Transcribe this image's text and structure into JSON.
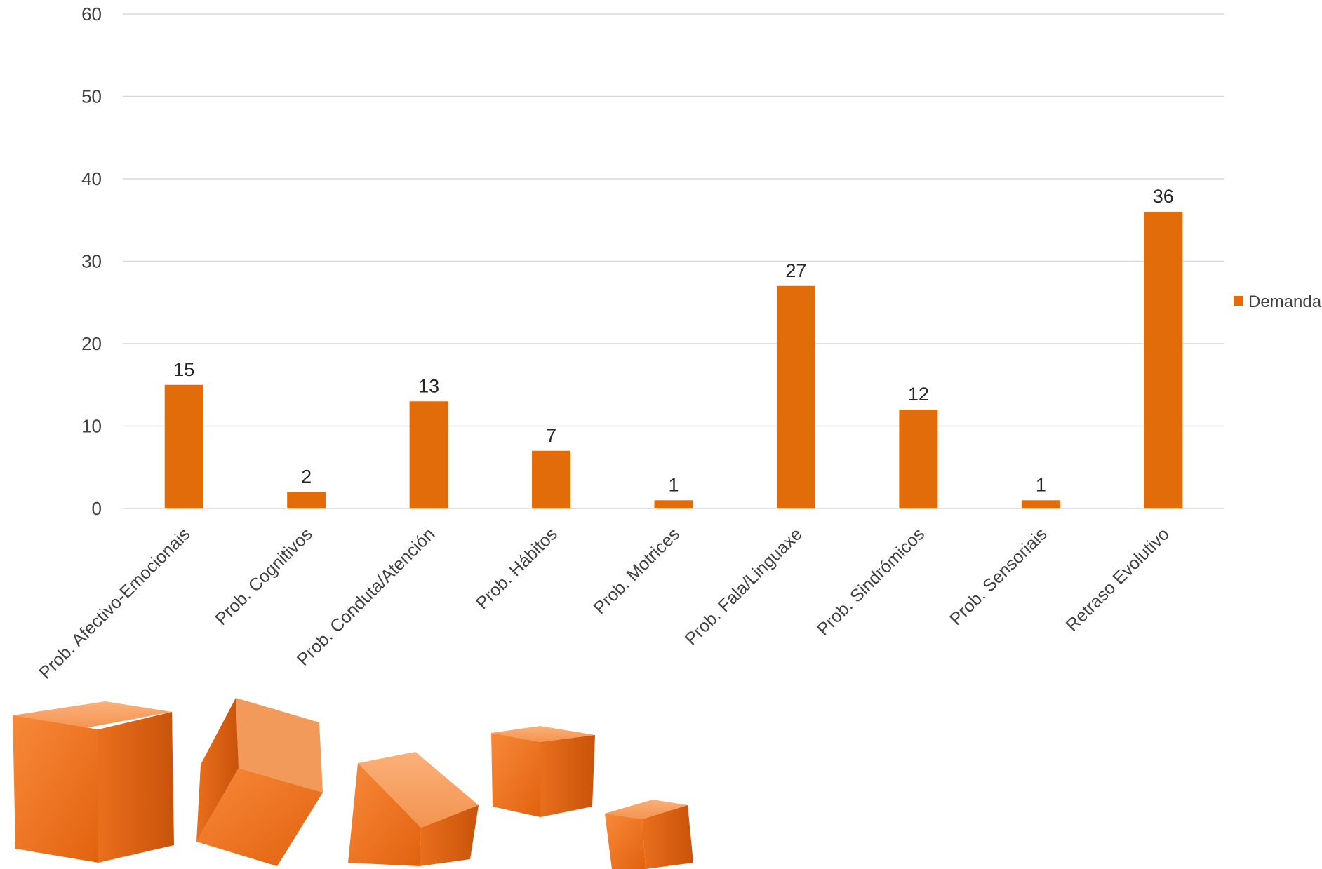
{
  "chart_data": {
    "type": "bar",
    "title": "",
    "xlabel": "",
    "ylabel": "",
    "categories": [
      "Prob. Afectivo-Emocionais",
      "Prob. Cognitivos",
      "Prob. Conduta/Atención",
      "Prob. Hábitos",
      "Prob. Motrices",
      "Prob. Fala/Linguaxe",
      "Prob. Sindrómicos",
      "Prob. Sensoriais",
      "Retraso Evolutivo"
    ],
    "series": [
      {
        "name": "Demanda",
        "values": [
          15,
          2,
          13,
          7,
          1,
          27,
          12,
          1,
          36
        ],
        "color": "#E36C0A"
      }
    ],
    "ylim": [
      0,
      60
    ],
    "yticks": [
      "0",
      "10",
      "20",
      "30",
      "40",
      "50",
      "60"
    ],
    "data_labels": [
      "15",
      "2",
      "13",
      "7",
      "1",
      "27",
      "12",
      "1",
      "36"
    ],
    "grid": true,
    "legend_position": "right",
    "decoration": "orange-cubes-image-bottom-left"
  }
}
